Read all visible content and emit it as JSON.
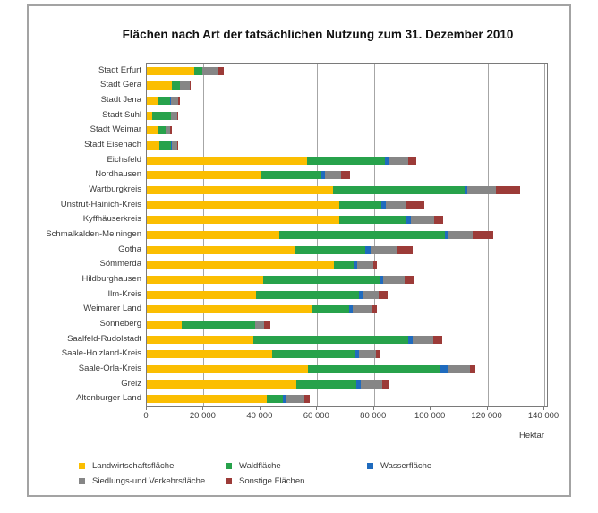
{
  "window": {
    "background": "#ffffff",
    "frame_border_color": "#a3a3a3"
  },
  "chart_data": {
    "type": "bar",
    "orientation": "horizontal",
    "stacked": true,
    "title": "Flächen nach Art der tatsächlichen Nutzung zum 31. Dezember 2010",
    "xlabel": "Hektar",
    "xlim": [
      0,
      140000
    ],
    "x_ticks": [
      0,
      20000,
      40000,
      60000,
      80000,
      100000,
      120000,
      140000
    ],
    "x_tick_labels": [
      "0",
      "20 000",
      "40 000",
      "60 000",
      "80 000",
      "100 000",
      "120 000",
      "140 000"
    ],
    "grid": true,
    "legend_position": "bottom",
    "categories": [
      "Stadt Erfurt",
      "Stadt Gera",
      "Stadt Jena",
      "Stadt Suhl",
      "Stadt Weimar",
      "Stadt Eisenach",
      "Eichsfeld",
      "Nordhausen",
      "Wartburgkreis",
      "Unstrut-Hainich-Kreis",
      "Kyffhäuserkreis",
      "Schmalkalden-Meiningen",
      "Gotha",
      "Sömmerda",
      "Hildburghausen",
      "Ilm-Kreis",
      "Weimarer Land",
      "Sonneberg",
      "Saalfeld-Rudolstadt",
      "Saale-Holzland-Kreis",
      "Saale-Orla-Kreis",
      "Greiz",
      "Altenburger Land"
    ],
    "series": [
      {
        "name": "Landwirtschaftsfläche",
        "color": "#FBBE01",
        "values": [
          16600,
          8800,
          4200,
          2000,
          3700,
          4300,
          56300,
          40400,
          65500,
          67800,
          67800,
          46800,
          52400,
          65900,
          41000,
          38400,
          58400,
          12400,
          37600,
          44000,
          56600,
          52600,
          42300
        ]
      },
      {
        "name": "Waldfläche",
        "color": "#27A24B",
        "values": [
          2900,
          2800,
          4100,
          6400,
          2900,
          4300,
          27700,
          21200,
          46300,
          14700,
          23400,
          58200,
          24600,
          6800,
          41400,
          36300,
          12900,
          25600,
          54600,
          29500,
          46500,
          21100,
          5600
        ]
      },
      {
        "name": "Wasserfläche",
        "color": "#1F6BBE",
        "values": [
          200,
          100,
          100,
          100,
          100,
          100,
          1000,
          1000,
          1200,
          1600,
          1800,
          1000,
          1900,
          1400,
          1000,
          1300,
          1200,
          300,
          1500,
          1200,
          2900,
          1700,
          1300
        ]
      },
      {
        "name": "Siedlungs-und Verkehrsfläche",
        "color": "#868686",
        "values": [
          5400,
          3300,
          2600,
          2200,
          1600,
          1900,
          7100,
          5900,
          9900,
          7300,
          8200,
          8900,
          9200,
          5600,
          7300,
          5800,
          6800,
          2900,
          7300,
          5900,
          7800,
          7500,
          6300
        ]
      },
      {
        "name": "Sonstige Flächen",
        "color": "#9C3B38",
        "values": [
          2000,
          300,
          700,
          300,
          600,
          300,
          2900,
          3000,
          8500,
          6500,
          3200,
          7000,
          5600,
          1500,
          3400,
          2900,
          1800,
          2400,
          3100,
          1600,
          1900,
          2300,
          2000
        ]
      }
    ]
  }
}
